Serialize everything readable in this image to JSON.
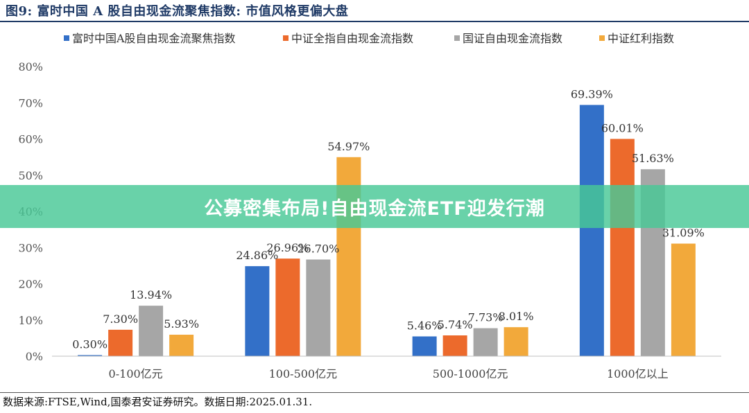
{
  "figure": {
    "title": "图9:  富时中国 A 股自由现金流聚焦指数:  市值风格更偏大盘",
    "source": "数据来源:FTSE,Wind,国泰君安证券研究。数据日期:2025.01.31."
  },
  "overlay": {
    "banner_text": "公募密集布局!自由现金流ETF迎发行潮"
  },
  "chart_data": {
    "type": "bar",
    "categories": [
      "0-100亿元",
      "100-500亿元",
      "500-1000亿元",
      "1000亿以上"
    ],
    "series": [
      {
        "name": "富时中国A股自由现金流聚焦指数",
        "color": "#3370c8",
        "values": [
          0.3,
          24.86,
          5.46,
          69.39
        ]
      },
      {
        "name": "中证全指自由现金流指数",
        "color": "#ec6a2c",
        "values": [
          7.3,
          26.96,
          5.74,
          60.01
        ]
      },
      {
        "name": "国证自由现金流指数",
        "color": "#a6a6a6",
        "values": [
          13.94,
          26.7,
          7.73,
          51.63
        ]
      },
      {
        "name": "中证红利指数",
        "color": "#f2a93b",
        "values": [
          5.93,
          54.97,
          8.01,
          31.09
        ]
      }
    ],
    "data_labels": [
      [
        "0.30%",
        "24.86%",
        "5.46%",
        "69.39%"
      ],
      [
        "7.30%",
        "26.96%",
        "5.74%",
        "60.01%"
      ],
      [
        "13.94%",
        "26.70%",
        "7.73%",
        "51.63%"
      ],
      [
        "5.93%",
        "54.97%",
        "8.01%",
        "31.09%"
      ]
    ],
    "yticks": [
      "0%",
      "10%",
      "20%",
      "30%",
      "40%",
      "50%",
      "60%",
      "70%",
      "80%"
    ],
    "ylim": [
      0,
      80
    ],
    "legend_position": "top",
    "grid": false
  }
}
